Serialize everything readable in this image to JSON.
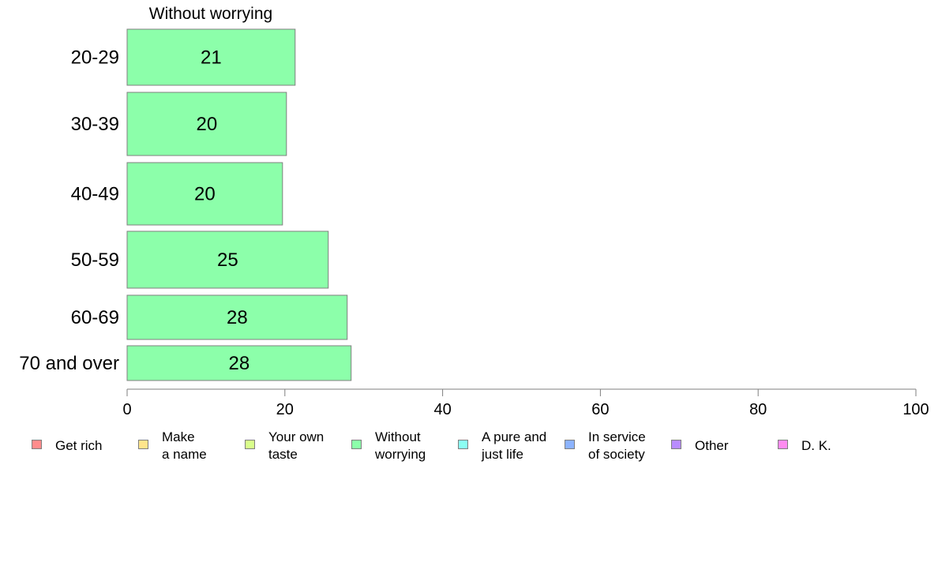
{
  "chart_data": {
    "type": "bar",
    "orientation": "horizontal",
    "title": "Without worrying",
    "categories": [
      "20-29",
      "30-39",
      "40-49",
      "50-59",
      "60-69",
      "70 and over"
    ],
    "series": [
      {
        "name": "Without worrying",
        "values": [
          21.3,
          20.2,
          19.7,
          25.5,
          27.9,
          28.4
        ],
        "labels": [
          "21",
          "20",
          "20",
          "25",
          "28",
          "28"
        ],
        "color": "#8cffaa"
      }
    ],
    "xlim": [
      0,
      100
    ],
    "xticks": [
      "0",
      "20",
      "40",
      "60",
      "80",
      "100"
    ],
    "xlabel": "",
    "ylabel": "",
    "grid": false,
    "legend_position": "bottom"
  },
  "legend": [
    {
      "label": "Get rich",
      "color": "#ff8c8c"
    },
    {
      "label": "Make\na name",
      "color": "#ffe58c"
    },
    {
      "label": "Your own\ntaste",
      "color": "#d9ff8c"
    },
    {
      "label": "Without\nworrying",
      "color": "#8cffaa"
    },
    {
      "label": "A pure and\njust life",
      "color": "#8cfff2"
    },
    {
      "label": "In service\nof society",
      "color": "#8cb3ff"
    },
    {
      "label": "Other",
      "color": "#b98cff"
    },
    {
      "label": "D. K.",
      "color": "#ff8cf0"
    }
  ]
}
